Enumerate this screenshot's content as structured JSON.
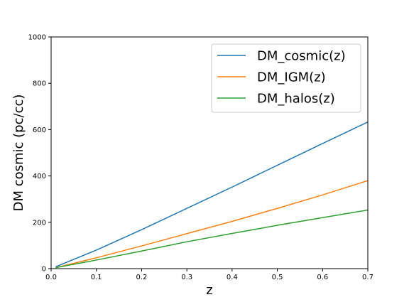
{
  "chart_data": {
    "type": "line",
    "xlabel": "z",
    "ylabel": "DM cosmic (pc/cc)",
    "xlim": [
      0.0,
      0.7
    ],
    "ylim": [
      0,
      1000
    ],
    "xticks": [
      "0.0",
      "0.1",
      "0.2",
      "0.3",
      "0.4",
      "0.5",
      "0.6",
      "0.7"
    ],
    "yticks": [
      "0",
      "200",
      "400",
      "600",
      "800",
      "1000"
    ],
    "grid": false,
    "legend_position": "top-right",
    "series": [
      {
        "name": "DM_cosmic(z)",
        "color": "#1f77b4",
        "x": [
          0.01,
          0.1,
          0.2,
          0.3,
          0.4,
          0.5,
          0.6,
          0.7
        ],
        "y": [
          8,
          80,
          168,
          260,
          352,
          446,
          540,
          633
        ]
      },
      {
        "name": "DM_IGM(z)",
        "color": "#ff7f0e",
        "x": [
          0.01,
          0.1,
          0.2,
          0.3,
          0.4,
          0.5,
          0.6,
          0.7
        ],
        "y": [
          4,
          47,
          98,
          151,
          204,
          260,
          318,
          380
        ]
      },
      {
        "name": "DM_halos(z)",
        "color": "#2ca02c",
        "x": [
          0.01,
          0.1,
          0.2,
          0.3,
          0.4,
          0.5,
          0.6,
          0.7
        ],
        "y": [
          4,
          37,
          76,
          116,
          152,
          187,
          220,
          253
        ]
      }
    ]
  }
}
